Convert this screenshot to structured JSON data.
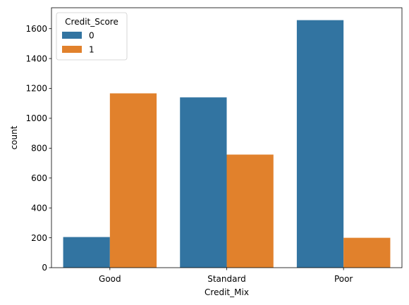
{
  "chart_data": {
    "type": "bar",
    "title": "",
    "xlabel": "Credit_Mix",
    "ylabel": "count",
    "categories": [
      "Good",
      "Standard",
      "Poor"
    ],
    "series": [
      {
        "name": "0",
        "color": "#3274a1",
        "values": [
          205,
          1140,
          1657
        ]
      },
      {
        "name": "1",
        "color": "#e1812c",
        "values": [
          1167,
          757,
          200
        ]
      }
    ],
    "ylim": [
      0,
      1740
    ],
    "yticks": [
      0,
      200,
      400,
      600,
      800,
      1000,
      1200,
      1400,
      1600
    ],
    "grid": false,
    "legend": {
      "title": "Credit_Score",
      "placement": "top-left"
    }
  }
}
